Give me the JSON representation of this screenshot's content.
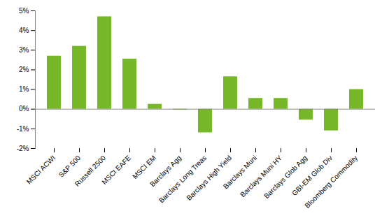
{
  "chart_data": {
    "type": "bar",
    "categories": [
      "MSCI ACWI",
      "S&P 500",
      "Russell 2500",
      "MSCI EAFE",
      "MSCI EM",
      "Barclays Agg",
      "Barclays Long Treas",
      "Barclays High Yield",
      "Barclays Muni",
      "Barclays Muni HY",
      "Barclays Glob Agg",
      "GBI-EM Glob Div",
      "Bloomberg Commodity"
    ],
    "values": [
      2.7,
      3.2,
      4.7,
      2.55,
      0.25,
      -0.05,
      -1.2,
      1.65,
      0.55,
      0.55,
      -0.55,
      -1.1,
      1.0
    ],
    "color": "#77b82a",
    "ylim": [
      -2,
      5
    ],
    "yticks": [
      {
        "value": -2,
        "label": "-2%"
      },
      {
        "value": -1,
        "label": "-1%"
      },
      {
        "value": 0,
        "label": "0%"
      },
      {
        "value": 1,
        "label": "1%"
      },
      {
        "value": 2,
        "label": "2%"
      },
      {
        "value": 3,
        "label": "3%"
      },
      {
        "value": 4,
        "label": "4%"
      },
      {
        "value": 5,
        "label": "5%"
      }
    ],
    "grid": false
  }
}
